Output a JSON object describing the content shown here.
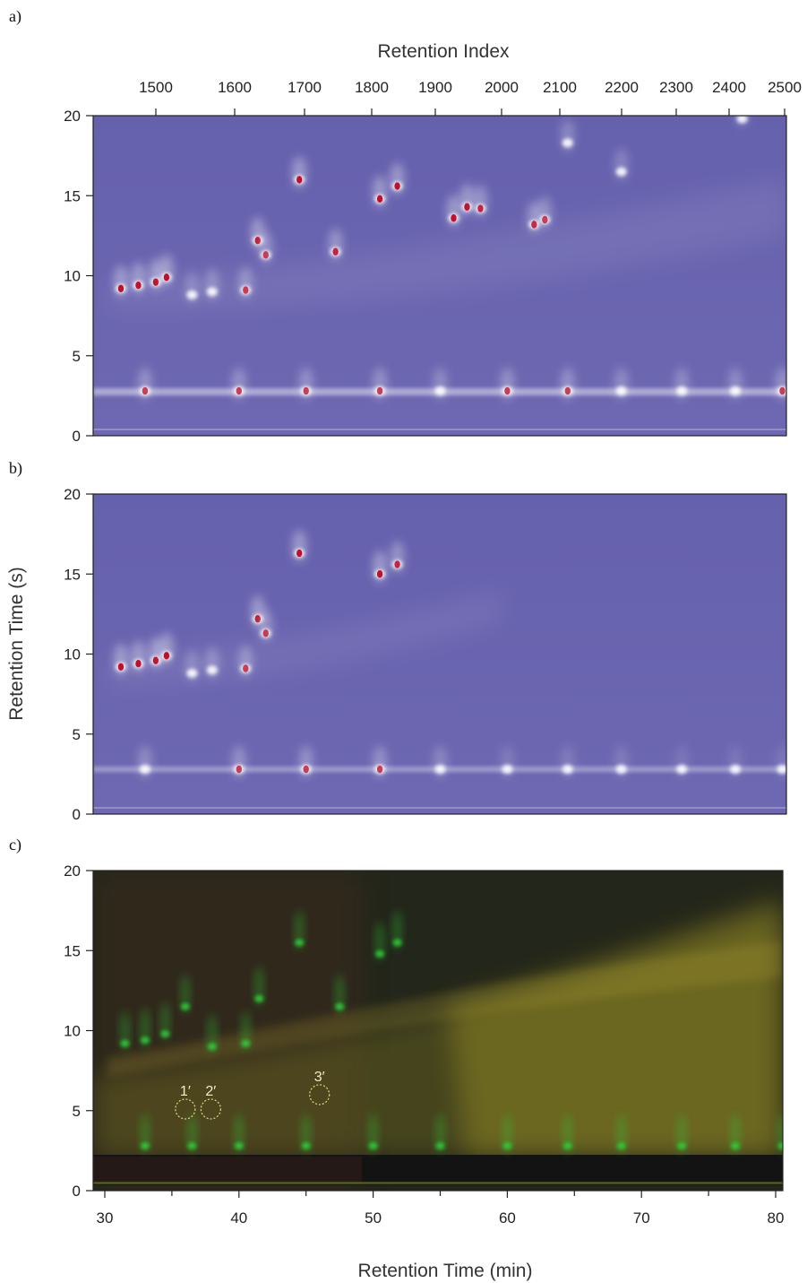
{
  "chart_data": [
    {
      "type": "heatmap",
      "panel_label": "a)",
      "xlabel": "Retention Index",
      "x_axis_position": "top",
      "x_ticks": [
        1500,
        1600,
        1700,
        1800,
        1900,
        2000,
        2100,
        2200,
        2300,
        2400,
        2500
      ],
      "y_ticks": [
        0,
        5,
        10,
        15,
        20
      ],
      "ylim": [
        0,
        20
      ],
      "colormap": [
        "#6a63ae",
        "#ffffff",
        "#c0102a"
      ],
      "spots": [
        {
          "x": 31.2,
          "y": 9.2,
          "i": 1
        },
        {
          "x": 32.5,
          "y": 9.4,
          "i": 1
        },
        {
          "x": 33.8,
          "y": 9.6,
          "i": 1
        },
        {
          "x": 34.6,
          "y": 9.9,
          "i": 1
        },
        {
          "x": 36.5,
          "y": 8.8,
          "i": 0.6
        },
        {
          "x": 38.0,
          "y": 9.0,
          "i": 0.7
        },
        {
          "x": 40.5,
          "y": 9.1,
          "i": 0.8
        },
        {
          "x": 41.4,
          "y": 12.2,
          "i": 1
        },
        {
          "x": 42.0,
          "y": 11.3,
          "i": 0.8
        },
        {
          "x": 44.5,
          "y": 16.0,
          "i": 1
        },
        {
          "x": 47.2,
          "y": 11.5,
          "i": 0.9
        },
        {
          "x": 50.5,
          "y": 14.8,
          "i": 1
        },
        {
          "x": 51.8,
          "y": 15.6,
          "i": 1
        },
        {
          "x": 56.0,
          "y": 13.6,
          "i": 1
        },
        {
          "x": 57.0,
          "y": 14.3,
          "i": 1
        },
        {
          "x": 58.0,
          "y": 14.2,
          "i": 0.9
        },
        {
          "x": 62.0,
          "y": 13.2,
          "i": 0.9
        },
        {
          "x": 62.8,
          "y": 13.5,
          "i": 0.8
        },
        {
          "x": 64.5,
          "y": 18.3,
          "i": 0.7
        },
        {
          "x": 68.5,
          "y": 16.5,
          "i": 0.6
        },
        {
          "x": 77.5,
          "y": 19.8,
          "i": 0.4
        },
        {
          "x": 33,
          "y": 2.8,
          "i": 0.8
        },
        {
          "x": 40,
          "y": 2.8,
          "i": 0.8
        },
        {
          "x": 45,
          "y": 2.8,
          "i": 0.8
        },
        {
          "x": 50.5,
          "y": 2.8,
          "i": 0.8
        },
        {
          "x": 55,
          "y": 2.8,
          "i": 0.7
        },
        {
          "x": 60,
          "y": 2.8,
          "i": 0.8
        },
        {
          "x": 64.5,
          "y": 2.8,
          "i": 0.8
        },
        {
          "x": 68.5,
          "y": 2.8,
          "i": 0.7
        },
        {
          "x": 73,
          "y": 2.8,
          "i": 0.7
        },
        {
          "x": 77,
          "y": 2.8,
          "i": 0.7
        },
        {
          "x": 80.5,
          "y": 2.8,
          "i": 0.8
        }
      ]
    },
    {
      "type": "heatmap",
      "panel_label": "b)",
      "ylabel": "Retention Time (s)",
      "y_ticks": [
        0,
        5,
        10,
        15,
        20
      ],
      "ylim": [
        0,
        20
      ],
      "colormap": [
        "#6a63ae",
        "#ffffff",
        "#c0102a"
      ],
      "spots": [
        {
          "x": 31.2,
          "y": 9.2,
          "i": 1
        },
        {
          "x": 32.5,
          "y": 9.4,
          "i": 1
        },
        {
          "x": 33.8,
          "y": 9.6,
          "i": 1
        },
        {
          "x": 34.6,
          "y": 9.9,
          "i": 1
        },
        {
          "x": 36.5,
          "y": 8.8,
          "i": 0.6
        },
        {
          "x": 38.0,
          "y": 9.0,
          "i": 0.7
        },
        {
          "x": 40.5,
          "y": 9.1,
          "i": 0.8
        },
        {
          "x": 41.4,
          "y": 12.2,
          "i": 1
        },
        {
          "x": 42.0,
          "y": 11.3,
          "i": 0.8
        },
        {
          "x": 44.5,
          "y": 16.3,
          "i": 1
        },
        {
          "x": 50.5,
          "y": 15.0,
          "i": 1
        },
        {
          "x": 51.8,
          "y": 15.6,
          "i": 0.9
        },
        {
          "x": 33,
          "y": 2.8,
          "i": 0.7
        },
        {
          "x": 40,
          "y": 2.8,
          "i": 0.8
        },
        {
          "x": 45,
          "y": 2.8,
          "i": 0.8
        },
        {
          "x": 50.5,
          "y": 2.8,
          "i": 0.8
        },
        {
          "x": 55,
          "y": 2.8,
          "i": 0.6
        },
        {
          "x": 60,
          "y": 2.8,
          "i": 0.4
        },
        {
          "x": 64.5,
          "y": 2.8,
          "i": 0.4
        },
        {
          "x": 68.5,
          "y": 2.8,
          "i": 0.4
        },
        {
          "x": 73,
          "y": 2.8,
          "i": 0.3
        },
        {
          "x": 77,
          "y": 2.8,
          "i": 0.3
        },
        {
          "x": 80.5,
          "y": 2.8,
          "i": 0.3
        }
      ]
    },
    {
      "type": "heatmap",
      "panel_label": "c)",
      "xlabel": "Retention Time (min)",
      "x_ticks": [
        30,
        40,
        50,
        60,
        70,
        80
      ],
      "xlim": [
        29.5,
        81
      ],
      "y_ticks": [
        0,
        5,
        10,
        15,
        20
      ],
      "ylim": [
        0,
        20
      ],
      "colors": {
        "green": "#2ed03a",
        "yellow": "#d8d02a",
        "dark": "#1c1a12"
      },
      "annotations": [
        {
          "label": "1′",
          "x": 36.0,
          "y": 5.1
        },
        {
          "label": "2′",
          "x": 37.9,
          "y": 5.1
        },
        {
          "label": "3′",
          "x": 46.0,
          "y": 6.0
        }
      ],
      "spots": [
        {
          "x": 31.5,
          "y": 9.2
        },
        {
          "x": 33,
          "y": 9.4
        },
        {
          "x": 34.5,
          "y": 9.8
        },
        {
          "x": 36,
          "y": 11.5
        },
        {
          "x": 38,
          "y": 9.0
        },
        {
          "x": 40.5,
          "y": 9.2
        },
        {
          "x": 41.5,
          "y": 12.0
        },
        {
          "x": 44.5,
          "y": 15.5
        },
        {
          "x": 47.5,
          "y": 11.5
        },
        {
          "x": 50.5,
          "y": 14.8
        },
        {
          "x": 51.8,
          "y": 15.5
        },
        {
          "x": 33,
          "y": 2.8
        },
        {
          "x": 36.5,
          "y": 2.8
        },
        {
          "x": 40,
          "y": 2.8
        },
        {
          "x": 45,
          "y": 2.8
        },
        {
          "x": 50,
          "y": 2.8
        },
        {
          "x": 55,
          "y": 2.8
        },
        {
          "x": 60,
          "y": 2.8
        },
        {
          "x": 64.5,
          "y": 2.8
        },
        {
          "x": 68.5,
          "y": 2.8
        },
        {
          "x": 73,
          "y": 2.8
        },
        {
          "x": 77,
          "y": 2.8
        },
        {
          "x": 80.5,
          "y": 2.8
        }
      ]
    }
  ]
}
